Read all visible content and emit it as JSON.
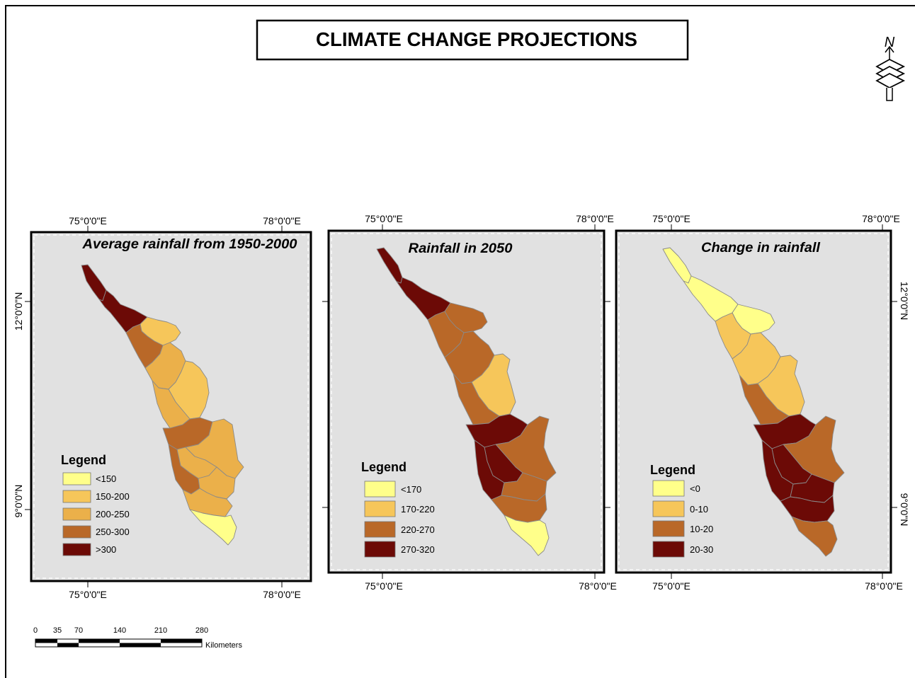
{
  "title": "CLIMATE CHANGE PROJECTIONS",
  "north_arrow": {
    "letter": "N",
    "icon": "north-arrow-icon"
  },
  "colors": {
    "class1": "#ffff8a",
    "class2": "#f6c65a",
    "class3": "#ebb04a",
    "class4": "#b96828",
    "class5": "#6c0a06",
    "panel_background": "#e1e1e1"
  },
  "maps": [
    {
      "title": "Average rainfall from 1950-2000",
      "lon_top": [
        "75°0'0\"E",
        "78°0'0\"E"
      ],
      "lon_bottom": [
        "75°0'0\"E",
        "78°0'0\"E"
      ],
      "lat_left": [
        "12°0'0\"N",
        "9°0'0\"N"
      ],
      "lat_right": [],
      "legend": {
        "title": "Legend",
        "items": [
          {
            "label": "<150",
            "color": "#ffff8a"
          },
          {
            "label": "150-200",
            "color": "#f6c65a"
          },
          {
            "label": "200-250",
            "color": "#ebb04a"
          },
          {
            "label": "250-300",
            "color": "#b96828"
          },
          {
            "label": ">300",
            "color": "#6c0a06"
          }
        ]
      }
    },
    {
      "title": "Rainfall in 2050",
      "lon_top": [
        "75°0'0\"E",
        "78°0'0\"E"
      ],
      "lon_bottom": [
        "75°0'0\"E",
        "78°0'0\"E"
      ],
      "lat_left": [],
      "lat_right": [],
      "legend": {
        "title": "Legend",
        "items": [
          {
            "label": "<170",
            "color": "#ffff8a"
          },
          {
            "label": "170-220",
            "color": "#f6c65a"
          },
          {
            "label": "220-270",
            "color": "#b96828"
          },
          {
            "label": "270-320",
            "color": "#6c0a06"
          }
        ]
      }
    },
    {
      "title": "Change in rainfall",
      "lon_top": [
        "75°0'0\"E",
        "78°0'0\"E"
      ],
      "lon_bottom": [
        "75°0'0\"E",
        "78°0'0\"E"
      ],
      "lat_left": [],
      "lat_right": [
        "12°0'0\"N",
        "9°0'0\"N"
      ],
      "legend": {
        "title": "Legend",
        "items": [
          {
            "label": "<0",
            "color": "#ffff8a"
          },
          {
            "label": "0-10",
            "color": "#f6c65a"
          },
          {
            "label": "10-20",
            "color": "#b96828"
          },
          {
            "label": "20-30",
            "color": "#6c0a06"
          }
        ]
      }
    }
  ],
  "scale_bar": {
    "ticks": [
      "0",
      "35",
      "70",
      "140",
      "210",
      "280"
    ],
    "unit": "Kilometers"
  }
}
